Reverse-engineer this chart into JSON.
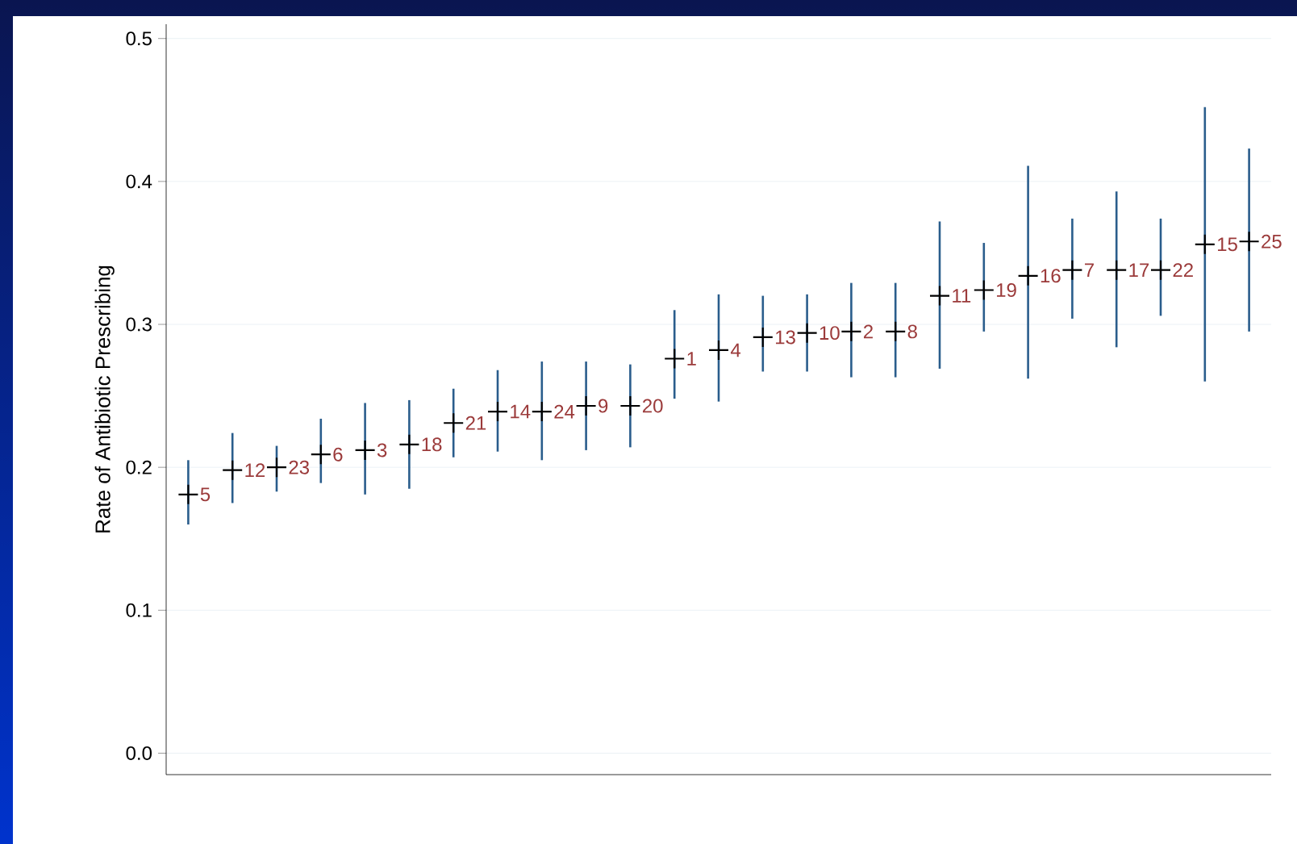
{
  "chart_data": {
    "type": "scatter",
    "ylabel": "Rate of Antibiotic Prescribing",
    "categories": [
      null,
      null,
      null,
      null,
      null,
      null,
      null,
      null,
      null,
      null,
      null,
      null,
      null,
      null,
      null,
      null,
      null,
      null,
      null,
      null,
      null,
      null,
      null,
      null,
      null
    ],
    "series": [
      {
        "color": "#000000",
        "values": [
          0.181,
          0.198,
          0.2,
          0.209,
          0.212,
          0.216,
          0.231,
          0.239,
          0.239,
          0.243,
          0.243,
          0.276,
          0.282,
          0.291,
          0.294,
          0.295,
          0.295,
          0.32,
          0.324,
          0.334,
          0.338,
          0.338,
          0.338,
          0.356,
          0.358
        ],
        "errors": [
          [
            0.16,
            0.205
          ],
          [
            0.175,
            0.224
          ],
          [
            0.183,
            0.215
          ],
          [
            0.189,
            0.234
          ],
          [
            0.181,
            0.245
          ],
          [
            0.185,
            0.247
          ],
          [
            0.207,
            0.255
          ],
          [
            0.211,
            0.268
          ],
          [
            0.205,
            0.274
          ],
          [
            0.212,
            0.274
          ],
          [
            0.214,
            0.272
          ],
          [
            0.248,
            0.31
          ],
          [
            0.246,
            0.321
          ],
          [
            0.267,
            0.32
          ],
          [
            0.267,
            0.321
          ],
          [
            0.263,
            0.329
          ],
          [
            0.263,
            0.329
          ],
          [
            0.269,
            0.372
          ],
          [
            0.295,
            0.357
          ],
          [
            0.262,
            0.411
          ],
          [
            0.304,
            0.374
          ],
          [
            0.284,
            0.393
          ],
          [
            0.306,
            0.374
          ],
          [
            0.26,
            0.452
          ],
          [
            0.295,
            0.423
          ]
        ]
      }
    ],
    "ylim": [
      -0.015,
      0.51
    ],
    "yticks": [
      {
        "value": 0,
        "label": "0.0"
      },
      0.1,
      0.2,
      0.3,
      0.4,
      0.5
    ],
    "grid": "y",
    "marker": "cross",
    "annotations": [
      "5",
      "12",
      "23",
      "6",
      "3",
      "18",
      "21",
      "14",
      "24",
      "9",
      "20",
      "1",
      "4",
      "13",
      "10",
      "2",
      "8",
      "11",
      "19",
      "16",
      "7",
      "17",
      "22",
      "15",
      "25"
    ]
  }
}
